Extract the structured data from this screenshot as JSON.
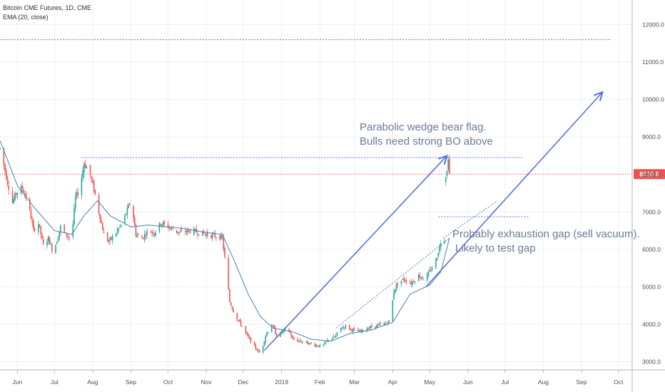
{
  "header": {
    "symbol_line": "Bitcoin CME Futures, 1D, CME",
    "indicator_line": "EMA (20, close)"
  },
  "colors": {
    "up": "#26a69a",
    "down": "#ef5350",
    "ema": "#4a7fb5",
    "drawing": "#5b6fd6",
    "price_line": "#e05050",
    "price_badge": "#ef5350"
  },
  "annotations": {
    "flag_line1": "Parabolic wedge bear flag.",
    "flag_line2": "Bulls need strong BO above",
    "gap_line1": "Probably exhaustion gap (sell vacuum).",
    "gap_line2": "Likely to test gap"
  },
  "chart_data": {
    "type": "candlestick",
    "x_axis": {
      "labels": [
        "Jun",
        "Jul",
        "Aug",
        "Sep",
        "Oct",
        "Nov",
        "Dec",
        "2019",
        "Feb",
        "Mar",
        "Apr",
        "May",
        "Jun",
        "Jul",
        "Aug",
        "Sep",
        "Oct"
      ],
      "months": [
        "2018-06",
        "2018-07",
        "2018-08",
        "2018-09",
        "2018-10",
        "2018-11",
        "2018-12",
        "2019-01",
        "2019-02",
        "2019-03",
        "2019-04",
        "2019-05",
        "2019-06",
        "2019-07",
        "2019-08",
        "2019-09",
        "2019-10"
      ]
    },
    "y_axis": {
      "ticks": [
        3000,
        4000,
        5000,
        6000,
        7000,
        8000,
        9000,
        10000,
        11000,
        12000
      ],
      "tick_labels": [
        "3000.0",
        "4000.0",
        "5000.0",
        "6000.0",
        "7000.0",
        "8000.0",
        "9000.0",
        "10000.0",
        "11000.0",
        "12000.0"
      ],
      "range": [
        2800,
        12400
      ],
      "position": "right"
    },
    "last_price": 8010,
    "last_price_label": "8010.0",
    "close_series": [
      [
        "2018-05-18",
        8700
      ],
      [
        "2018-05-24",
        7800
      ],
      [
        "2018-05-28",
        7250
      ],
      [
        "2018-05-31",
        7500
      ],
      [
        "2018-06-05",
        7650
      ],
      [
        "2018-06-10",
        7200
      ],
      [
        "2018-06-14",
        6500
      ],
      [
        "2018-06-18",
        6700
      ],
      [
        "2018-06-22",
        6100
      ],
      [
        "2018-06-26",
        6300
      ],
      [
        "2018-06-30",
        5900
      ],
      [
        "2018-07-06",
        6600
      ],
      [
        "2018-07-10",
        6400
      ],
      [
        "2018-07-15",
        6300
      ],
      [
        "2018-07-18",
        7400
      ],
      [
        "2018-07-21",
        7550
      ],
      [
        "2018-07-25",
        8300
      ],
      [
        "2018-07-29",
        8100
      ],
      [
        "2018-08-02",
        7600
      ],
      [
        "2018-08-06",
        7000
      ],
      [
        "2018-08-10",
        6400
      ],
      [
        "2018-08-14",
        6200
      ],
      [
        "2018-08-20",
        6450
      ],
      [
        "2018-08-25",
        6700
      ],
      [
        "2018-09-01",
        7300
      ],
      [
        "2018-09-05",
        6400
      ],
      [
        "2018-09-10",
        6300
      ],
      [
        "2018-09-15",
        6500
      ],
      [
        "2018-09-20",
        6450
      ],
      [
        "2018-09-25",
        6700
      ],
      [
        "2018-10-01",
        6600
      ],
      [
        "2018-10-10",
        6450
      ],
      [
        "2018-10-20",
        6500
      ],
      [
        "2018-11-01",
        6400
      ],
      [
        "2018-11-10",
        6350
      ],
      [
        "2018-11-14",
        6300
      ],
      [
        "2018-11-17",
        5500
      ],
      [
        "2018-11-20",
        4600
      ],
      [
        "2018-11-25",
        4200
      ],
      [
        "2018-11-29",
        4000
      ],
      [
        "2018-12-04",
        3700
      ],
      [
        "2018-12-10",
        3400
      ],
      [
        "2018-12-15",
        3200
      ],
      [
        "2018-12-19",
        3700
      ],
      [
        "2018-12-24",
        4000
      ],
      [
        "2018-12-28",
        3700
      ],
      [
        "2019-01-02",
        3800
      ],
      [
        "2019-01-06",
        3900
      ],
      [
        "2019-01-10",
        3600
      ],
      [
        "2019-01-16",
        3550
      ],
      [
        "2019-01-22",
        3500
      ],
      [
        "2019-01-28",
        3450
      ],
      [
        "2019-02-03",
        3400
      ],
      [
        "2019-02-08",
        3600
      ],
      [
        "2019-02-13",
        3650
      ],
      [
        "2019-02-18",
        3900
      ],
      [
        "2019-02-22",
        3950
      ],
      [
        "2019-02-27",
        3850
      ],
      [
        "2019-03-05",
        3800
      ],
      [
        "2019-03-12",
        3900
      ],
      [
        "2019-03-18",
        3950
      ],
      [
        "2019-03-25",
        4000
      ],
      [
        "2019-03-30",
        4100
      ],
      [
        "2019-04-02",
        4900
      ],
      [
        "2019-04-06",
        5150
      ],
      [
        "2019-04-10",
        5200
      ],
      [
        "2019-04-16",
        5100
      ],
      [
        "2019-04-22",
        5300
      ],
      [
        "2019-04-27",
        5200
      ],
      [
        "2019-05-01",
        5400
      ],
      [
        "2019-05-06",
        5700
      ],
      [
        "2019-05-10",
        6200
      ],
      [
        "2019-05-13",
        6300
      ],
      [
        "2019-05-14",
        7900
      ],
      [
        "2019-05-16",
        8300
      ],
      [
        "2019-05-17",
        8010
      ]
    ],
    "ema_series": [
      [
        "2018-05-18",
        8900
      ],
      [
        "2018-06-01",
        7700
      ],
      [
        "2018-06-15",
        7100
      ],
      [
        "2018-07-01",
        6500
      ],
      [
        "2018-07-15",
        6400
      ],
      [
        "2018-07-25",
        6900
      ],
      [
        "2018-08-05",
        7300
      ],
      [
        "2018-08-15",
        6900
      ],
      [
        "2018-09-01",
        6600
      ],
      [
        "2018-09-15",
        6650
      ],
      [
        "2018-10-01",
        6600
      ],
      [
        "2018-10-15",
        6550
      ],
      [
        "2018-11-01",
        6450
      ],
      [
        "2018-11-14",
        6400
      ],
      [
        "2018-11-25",
        5600
      ],
      [
        "2018-12-05",
        4800
      ],
      [
        "2018-12-15",
        4200
      ],
      [
        "2018-12-25",
        3900
      ],
      [
        "2019-01-10",
        3800
      ],
      [
        "2019-01-25",
        3600
      ],
      [
        "2019-02-10",
        3550
      ],
      [
        "2019-02-25",
        3750
      ],
      [
        "2019-03-15",
        3850
      ],
      [
        "2019-04-01",
        4050
      ],
      [
        "2019-04-15",
        4800
      ],
      [
        "2019-05-01",
        5050
      ],
      [
        "2019-05-10",
        5400
      ],
      [
        "2019-05-17",
        6300
      ]
    ],
    "drawings": {
      "hlines": [
        {
          "from": "2018-05-18",
          "to": "2019-09-25",
          "y": 11600
        },
        {
          "from": "2018-07-23",
          "to": "2019-07-15",
          "y": 8450
        },
        {
          "from": "2019-05-08",
          "to": "2019-07-20",
          "y": 6870
        },
        {
          "from": "2018-05-18",
          "to": "2019-10-25",
          "y": 8010,
          "style": "price"
        }
      ],
      "trendlines": [
        {
          "from": [
            "2018-12-18",
            3300
          ],
          "to": [
            "2019-05-15",
            8500
          ],
          "arrow": true
        },
        {
          "from": [
            "2019-04-28",
            5000
          ],
          "to": [
            "2019-09-18",
            10200
          ],
          "arrow": true
        },
        {
          "from": [
            "2019-02-14",
            3900
          ],
          "to": [
            "2019-05-17",
            6300
          ],
          "dashed": true
        },
        {
          "from": [
            "2019-05-12",
            6300
          ],
          "to": [
            "2019-06-25",
            7300
          ],
          "dashed": true
        }
      ]
    }
  }
}
